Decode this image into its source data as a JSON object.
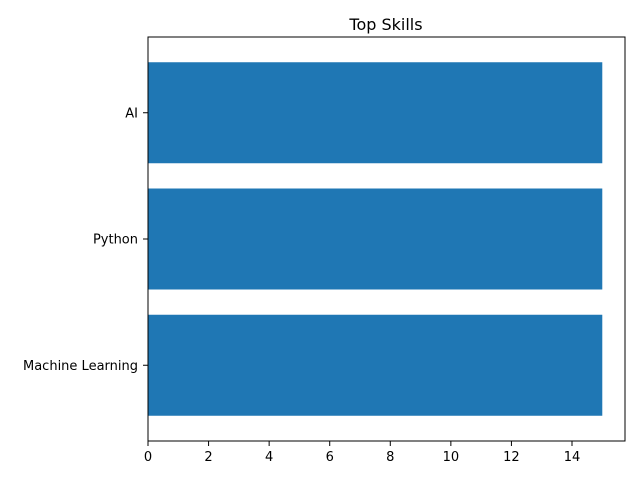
{
  "chart_data": {
    "type": "bar",
    "orientation": "horizontal",
    "title": "Top Skills",
    "categories": [
      "Machine Learning",
      "Python",
      "AI"
    ],
    "values": [
      15,
      15,
      15
    ],
    "xlabel": "",
    "ylabel": "",
    "xlim": [
      0,
      15.75
    ],
    "xticks": [
      0,
      2,
      4,
      6,
      8,
      10,
      12,
      14
    ],
    "grid": false,
    "legend": "none",
    "bar_color": "#1f77b4"
  }
}
